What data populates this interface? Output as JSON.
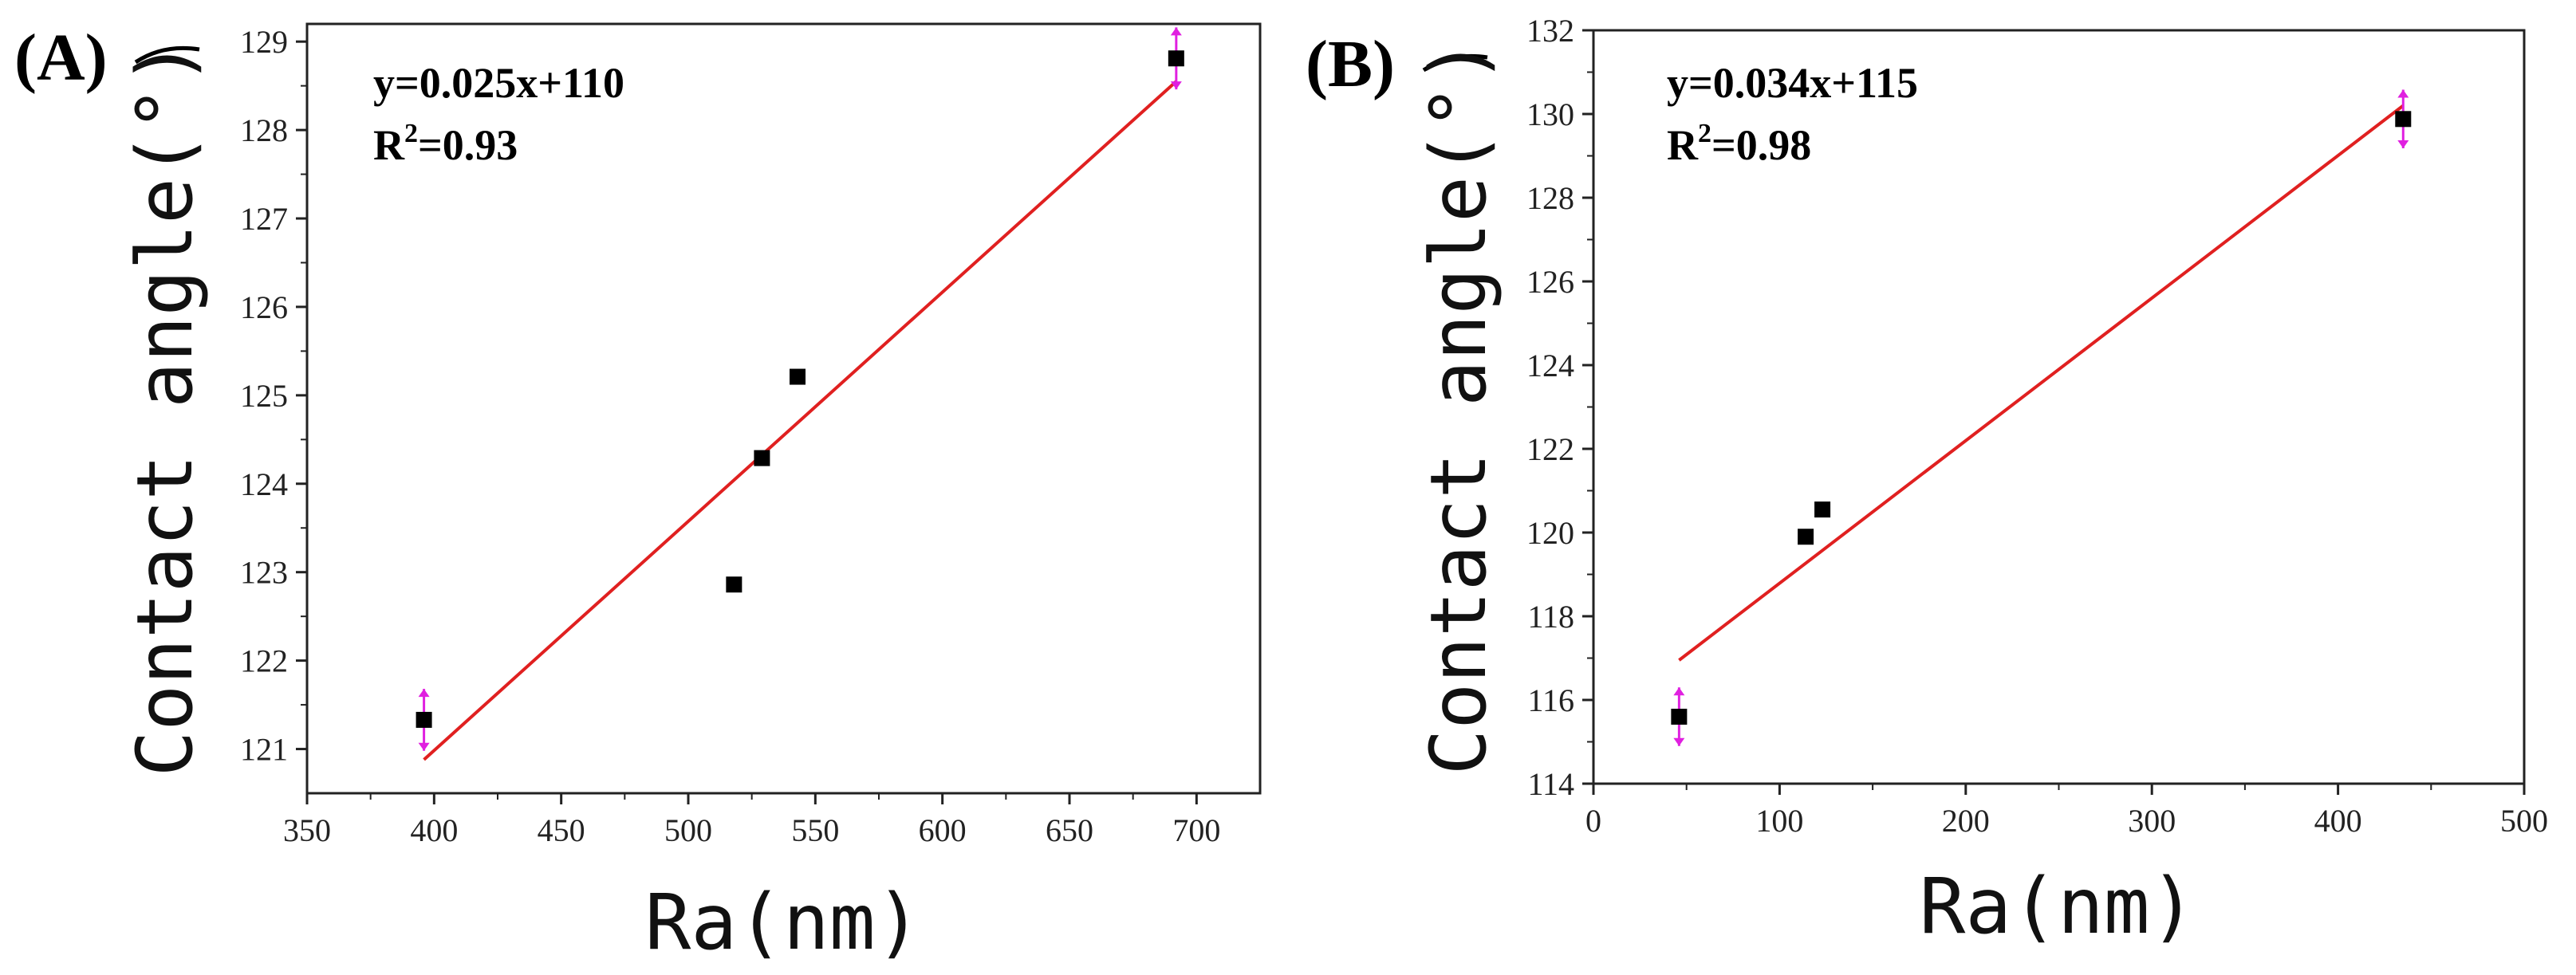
{
  "chart_data": [
    {
      "type": "scatter",
      "panel_label": "(A)",
      "xlabel": "Ra(nm)",
      "ylabel": "Contact angle(°)",
      "xlim": [
        350,
        725
      ],
      "ylim": [
        120.5,
        129.2
      ],
      "xticks": [
        350,
        400,
        450,
        500,
        550,
        600,
        650,
        700
      ],
      "yticks": [
        121,
        122,
        123,
        124,
        125,
        126,
        127,
        128,
        129
      ],
      "xtick_labels": [
        "350",
        "400",
        "450",
        "500",
        "550",
        "600",
        "650",
        "700"
      ],
      "ytick_labels": [
        "121",
        "122",
        "123",
        "124",
        "125",
        "126",
        "127",
        "128",
        "129"
      ],
      "points": [
        {
          "x": 396,
          "y": 121.33,
          "err": 0.35
        },
        {
          "x": 518,
          "y": 122.86
        },
        {
          "x": 529,
          "y": 124.29
        },
        {
          "x": 543,
          "y": 125.21
        },
        {
          "x": 692,
          "y": 128.81,
          "err": 0.35
        }
      ],
      "fit": {
        "x_start": 396,
        "y_start": 120.88,
        "x_end": 692,
        "y_end": 128.55,
        "color": "#e02020"
      },
      "equation": "y=0.025x+110",
      "r2_prefix": "R",
      "r2_sup": "2",
      "r2_value": "=0.93",
      "marker_color": "#000000",
      "errorbar_color": "#e020e0"
    },
    {
      "type": "scatter",
      "panel_label": "(B)",
      "xlabel": "Ra(nm)",
      "ylabel": "Contact angle(°)",
      "xlim": [
        0,
        500
      ],
      "ylim": [
        114,
        132
      ],
      "xticks": [
        0,
        100,
        200,
        300,
        400,
        500
      ],
      "yticks": [
        114,
        116,
        118,
        120,
        122,
        124,
        126,
        128,
        130,
        132
      ],
      "xtick_labels": [
        "0",
        "100",
        "200",
        "300",
        "400",
        "500"
      ],
      "ytick_labels": [
        "114",
        "116",
        "118",
        "120",
        "122",
        "124",
        "126",
        "128",
        "130",
        "132"
      ],
      "points": [
        {
          "x": 46,
          "y": 115.6,
          "err": 0.7
        },
        {
          "x": 114,
          "y": 119.9
        },
        {
          "x": 123,
          "y": 120.55
        },
        {
          "x": 435,
          "y": 129.88,
          "err": 0.7
        }
      ],
      "fit": {
        "x_start": 46,
        "y_start": 116.95,
        "x_end": 435,
        "y_end": 130.2,
        "color": "#e02020"
      },
      "equation": "y=0.034x+115",
      "r2_prefix": "R",
      "r2_sup": "2",
      "r2_value": "=0.98",
      "marker_color": "#000000",
      "errorbar_color": "#e020e0"
    }
  ]
}
